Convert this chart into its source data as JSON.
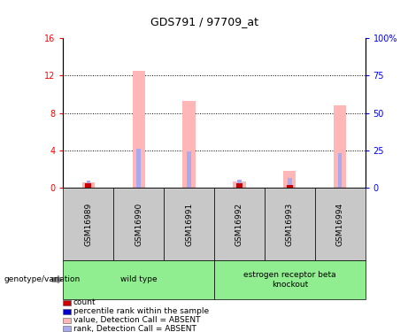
{
  "title": "GDS791 / 97709_at",
  "samples": [
    "GSM16989",
    "GSM16990",
    "GSM16991",
    "GSM16992",
    "GSM16993",
    "GSM16994"
  ],
  "pink_bars": [
    0.55,
    12.5,
    9.3,
    0.65,
    1.8,
    8.8
  ],
  "blue_bars": [
    0.7,
    4.2,
    3.9,
    0.8,
    1.0,
    3.7
  ],
  "red_vals": [
    0.5,
    0.0,
    0.0,
    0.5,
    0.3,
    0.0
  ],
  "ylim_left": [
    0,
    16
  ],
  "ylim_right": [
    0,
    100
  ],
  "yticks_left": [
    0,
    4,
    8,
    12,
    16
  ],
  "ytick_labels_left": [
    "0",
    "4",
    "8",
    "12",
    "16"
  ],
  "yticks_right": [
    0,
    25,
    50,
    75,
    100
  ],
  "ytick_labels_right": [
    "0",
    "25",
    "50",
    "75",
    "100%"
  ],
  "pink_color": "#ffb6b6",
  "blue_color": "#aaaaee",
  "red_color": "#cc0000",
  "bg_gray": "#c8c8c8",
  "bg_green": "#90ee90",
  "wild_type_indices": [
    0,
    1,
    2
  ],
  "knockout_indices": [
    3,
    4,
    5
  ],
  "wild_type_label": "wild type",
  "knockout_label": "estrogen receptor beta\nknockout"
}
